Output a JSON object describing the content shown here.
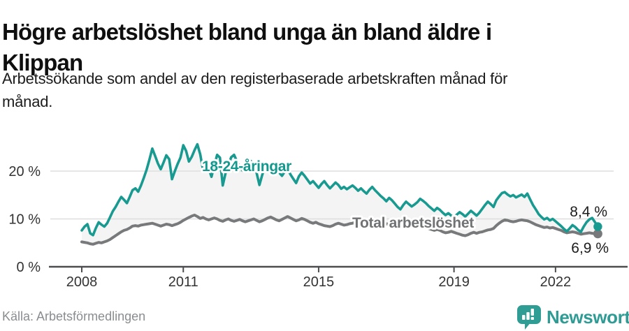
{
  "header": {
    "title_line1": "Högre arbetslöshet bland unga än bland äldre i",
    "title_line2": "Klippan",
    "subtitle_line1": "Arbetssökande som andel av den registerbaserade arbetskraften månad för",
    "subtitle_line2": "månad."
  },
  "chart_data": {
    "type": "line",
    "title": "Högre arbetslöshet bland unga än bland äldre i Klippan",
    "unit": "%",
    "x_start_year": 2008,
    "points_per_year": 12,
    "xticks": [
      2008,
      2011,
      2015,
      2019,
      2022
    ],
    "yticks": [
      {
        "value": 0,
        "label": "0 %"
      },
      {
        "value": 10,
        "label": "10 %"
      },
      {
        "value": 20,
        "label": "20 %"
      }
    ],
    "ylim": [
      0,
      28
    ],
    "grid": true,
    "legend_position": "inline-labels",
    "fill_between_color": "#f4f4f4",
    "colors": {
      "youth": "#189a90",
      "total": "#77797b",
      "axis": "#4b4d4f",
      "gridline": "#dedede",
      "tick_label": "#333333",
      "end_label": "#1c1c1c"
    },
    "series": [
      {
        "name": "18-24-åringar",
        "color": "#189a90",
        "label_color": "#12988d",
        "end_label": "8,4 %",
        "end_value": 8.4,
        "values": [
          7.6,
          8.4,
          8.9,
          7.0,
          6.6,
          8.1,
          9.3,
          8.8,
          8.4,
          9.1,
          10.3,
          11.6,
          12.5,
          13.6,
          14.6,
          14.0,
          13.3,
          14.6,
          16.0,
          16.4,
          15.7,
          17.0,
          18.6,
          20.3,
          22.4,
          24.7,
          23.2,
          21.6,
          20.4,
          21.8,
          23.3,
          22.5,
          18.3,
          20.0,
          21.5,
          22.8,
          25.4,
          24.2,
          22.0,
          23.0,
          24.4,
          25.6,
          23.5,
          20.2,
          21.8,
          20.6,
          18.8,
          21.2,
          23.4,
          22.8,
          17.0,
          19.6,
          21.2,
          22.9,
          23.4,
          22.1,
          21.0,
          20.1,
          20.6,
          21.4,
          22.1,
          21.1,
          19.6,
          17.1,
          19.2,
          21.0,
          21.6,
          20.6,
          19.9,
          20.4,
          19.7,
          19.0,
          19.9,
          20.5,
          19.3,
          18.4,
          17.5,
          18.9,
          19.7,
          19.0,
          18.2,
          17.4,
          17.9,
          17.2,
          16.5,
          17.3,
          17.9,
          17.1,
          16.4,
          17.0,
          17.6,
          17.1,
          16.3,
          16.7,
          16.2,
          16.6,
          17.0,
          16.5,
          15.9,
          16.4,
          15.8,
          15.3,
          16.1,
          16.7,
          16.0,
          15.4,
          14.8,
          14.3,
          13.7,
          14.4,
          13.9,
          13.2,
          12.5,
          12.0,
          12.9,
          13.6,
          13.1,
          12.6,
          13.0,
          13.5,
          14.2,
          13.8,
          13.3,
          12.7,
          12.2,
          11.7,
          12.3,
          11.9,
          11.3,
          10.8,
          11.2,
          10.7,
          10.4,
          10.9,
          11.4,
          11.0,
          10.5,
          11.1,
          11.7,
          11.2,
          10.7,
          11.3,
          12.1,
          12.9,
          13.6,
          13.1,
          12.5,
          13.9,
          14.7,
          15.4,
          15.6,
          15.1,
          14.7,
          15.0,
          14.5,
          14.8,
          15.1,
          14.6,
          15.3,
          14.1,
          12.9,
          12.0,
          11.0,
          10.4,
          9.9,
          10.2,
          9.7,
          10.0,
          9.5,
          9.0,
          8.5,
          7.9,
          7.4,
          8.0,
          8.7,
          8.3,
          7.7,
          7.3,
          8.4,
          9.3,
          9.9,
          10.2,
          9.3,
          8.4
        ]
      },
      {
        "name": "Total arbetslöshet",
        "color": "#77797b",
        "label_color": "#707274",
        "end_label": "6,9 %",
        "end_value": 6.9,
        "values": [
          5.2,
          5.1,
          5.0,
          4.8,
          4.7,
          4.9,
          5.1,
          5.0,
          5.2,
          5.4,
          5.7,
          6.1,
          6.5,
          6.9,
          7.3,
          7.6,
          7.8,
          8.1,
          8.5,
          8.6,
          8.5,
          8.7,
          8.8,
          8.9,
          9.0,
          9.1,
          8.9,
          8.7,
          8.5,
          8.7,
          8.9,
          8.8,
          8.6,
          8.8,
          9.0,
          9.3,
          9.7,
          10.0,
          10.3,
          10.6,
          10.8,
          10.5,
          10.1,
          10.3,
          10.0,
          9.8,
          10.0,
          10.2,
          10.0,
          9.7,
          9.5,
          9.8,
          10.0,
          9.7,
          9.5,
          9.7,
          9.9,
          9.6,
          9.4,
          9.6,
          9.8,
          10.0,
          9.7,
          9.4,
          9.6,
          9.9,
          10.2,
          10.4,
          10.1,
          9.8,
          9.6,
          9.9,
          10.2,
          10.5,
          10.2,
          9.9,
          9.6,
          9.8,
          10.1,
          9.9,
          9.6,
          9.3,
          9.1,
          9.3,
          9.0,
          8.8,
          8.6,
          8.5,
          8.4,
          8.6,
          8.9,
          9.1,
          8.9,
          8.7,
          8.8,
          9.0,
          9.1,
          9.3,
          9.1,
          8.9,
          8.7,
          8.8,
          9.0,
          9.2,
          9.0,
          8.8,
          8.7,
          8.9,
          9.0,
          8.8,
          8.6,
          8.4,
          8.2,
          8.4,
          8.7,
          8.9,
          8.6,
          8.4,
          8.5,
          8.7,
          8.8,
          8.6,
          8.3,
          8.0,
          7.8,
          7.6,
          7.8,
          7.6,
          7.3,
          7.1,
          7.2,
          7.4,
          7.2,
          7.0,
          6.8,
          6.6,
          6.5,
          6.7,
          7.0,
          7.2,
          7.0,
          7.2,
          7.3,
          7.5,
          7.7,
          7.8,
          8.0,
          8.6,
          9.1,
          9.5,
          9.8,
          9.7,
          9.5,
          9.4,
          9.5,
          9.7,
          9.8,
          9.7,
          9.6,
          9.4,
          9.1,
          8.8,
          8.6,
          8.4,
          8.2,
          8.3,
          8.1,
          8.2,
          8.0,
          7.8,
          7.6,
          7.3,
          7.1,
          7.2,
          7.3,
          7.2,
          7.0,
          6.8,
          6.9,
          7.0,
          7.1,
          7.0,
          6.9,
          6.9
        ]
      }
    ]
  },
  "footer": {
    "source": "Källa: Arbetsförmedlingen",
    "brand": "Newsworthy"
  }
}
